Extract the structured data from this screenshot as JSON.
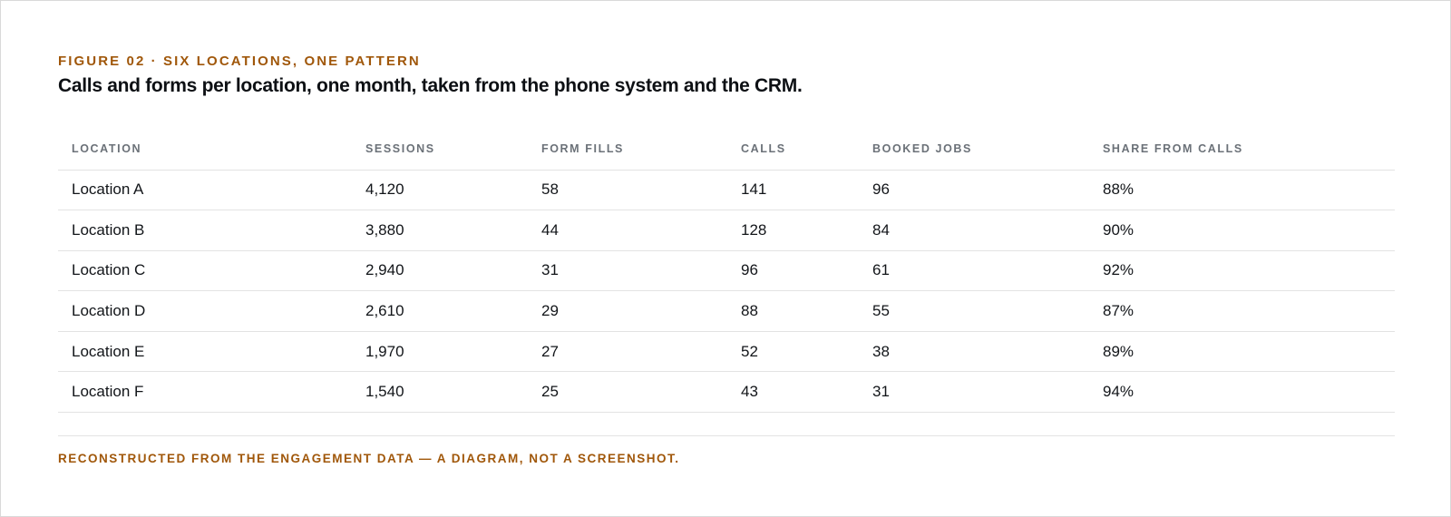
{
  "figure": {
    "eyebrow": "FIGURE 02 · SIX LOCATIONS, ONE PATTERN",
    "headline": "Calls and forms per location, one month, taken from the phone system and the CRM."
  },
  "table": {
    "columns": [
      "LOCATION",
      "SESSIONS",
      "FORM FILLS",
      "CALLS",
      "BOOKED JOBS",
      "SHARE FROM CALLS"
    ],
    "rows": [
      [
        "Location A",
        "4,120",
        "58",
        "141",
        "96",
        "88%"
      ],
      [
        "Location B",
        "3,880",
        "44",
        "128",
        "84",
        "90%"
      ],
      [
        "Location C",
        "2,940",
        "31",
        "96",
        "61",
        "92%"
      ],
      [
        "Location D",
        "2,610",
        "29",
        "88",
        "55",
        "87%"
      ],
      [
        "Location E",
        "1,970",
        "27",
        "52",
        "38",
        "89%"
      ],
      [
        "Location F",
        "1,540",
        "25",
        "43",
        "31",
        "94%"
      ]
    ]
  },
  "footnote": "RECONSTRUCTED FROM THE ENGAGEMENT DATA — A DIAGRAM, NOT A SCREENSHOT.",
  "colors": {
    "accent": "#a0570a",
    "header_text": "#6b7178",
    "body_text": "#121519",
    "rule": "#e3e3e3"
  }
}
